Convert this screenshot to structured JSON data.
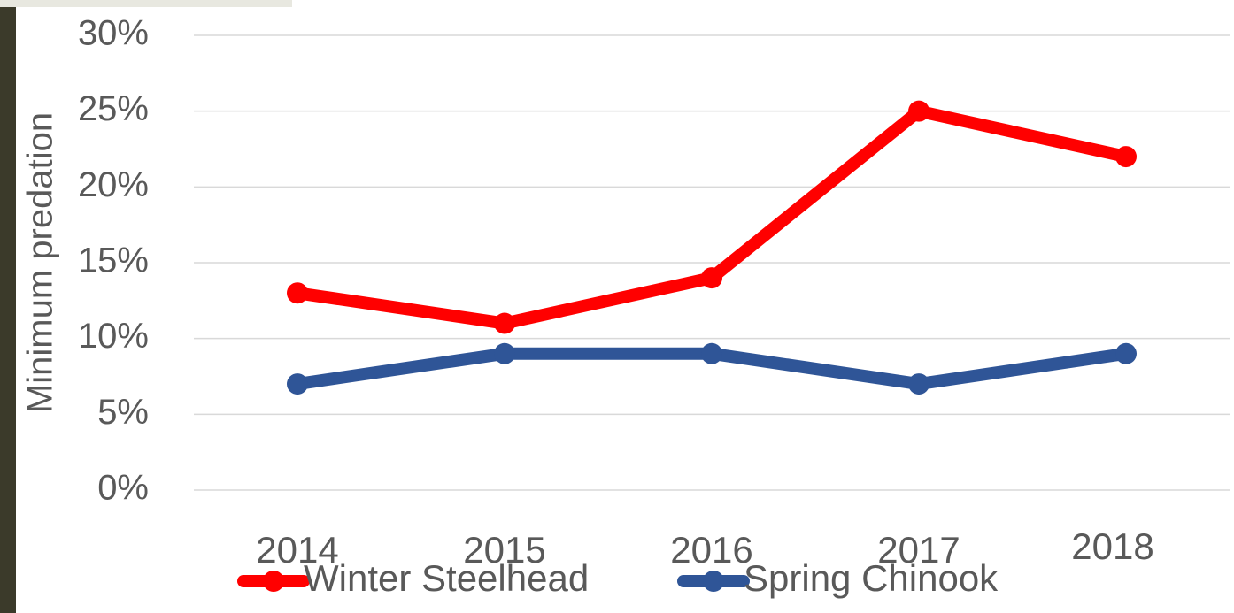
{
  "chart_data": {
    "type": "line",
    "y_label": "Minimum predation",
    "categories": [
      "2014",
      "2015",
      "2016",
      "2017",
      "2018"
    ],
    "series": [
      {
        "name": "Winter Steelhead",
        "color": "#ff0000",
        "values": [
          13,
          11,
          14,
          25,
          22
        ]
      },
      {
        "name": "Spring Chinook",
        "color": "#2f5597",
        "values": [
          7,
          9,
          9,
          7,
          9
        ]
      }
    ],
    "ylim": [
      0,
      30
    ],
    "yticks": [
      {
        "value": 0,
        "label": "0%"
      },
      {
        "value": 5,
        "label": "5%"
      },
      {
        "value": 10,
        "label": "10%"
      },
      {
        "value": 15,
        "label": "15%"
      },
      {
        "value": 20,
        "label": "20%"
      },
      {
        "value": 25,
        "label": "25%"
      },
      {
        "value": 30,
        "label": "30%"
      }
    ],
    "grid": true,
    "legend": "bottom"
  }
}
